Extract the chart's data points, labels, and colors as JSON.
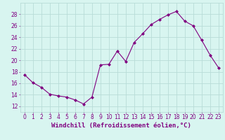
{
  "x": [
    0,
    1,
    2,
    3,
    4,
    5,
    6,
    7,
    8,
    9,
    10,
    11,
    12,
    13,
    14,
    15,
    16,
    17,
    18,
    19,
    20,
    21,
    22,
    23
  ],
  "y": [
    17.5,
    16.1,
    15.3,
    14.1,
    13.8,
    13.6,
    13.1,
    12.4,
    13.6,
    19.2,
    19.3,
    21.6,
    19.8,
    23.1,
    24.6,
    26.2,
    27.1,
    27.9,
    28.5,
    26.8,
    26.0,
    23.5,
    20.9,
    18.7
  ],
  "line_color": "#800080",
  "marker": "D",
  "marker_size": 2,
  "bg_color": "#d8f5f0",
  "grid_color": "#b8dcd8",
  "xlabel": "Windchill (Refroidissement éolien,°C)",
  "xlabel_color": "#800080",
  "xlabel_fontsize": 6.5,
  "tick_color": "#800080",
  "tick_fontsize": 5.5,
  "ylim": [
    11,
    30
  ],
  "yticks": [
    12,
    14,
    16,
    18,
    20,
    22,
    24,
    26,
    28
  ],
  "xlim": [
    -0.5,
    23.5
  ]
}
